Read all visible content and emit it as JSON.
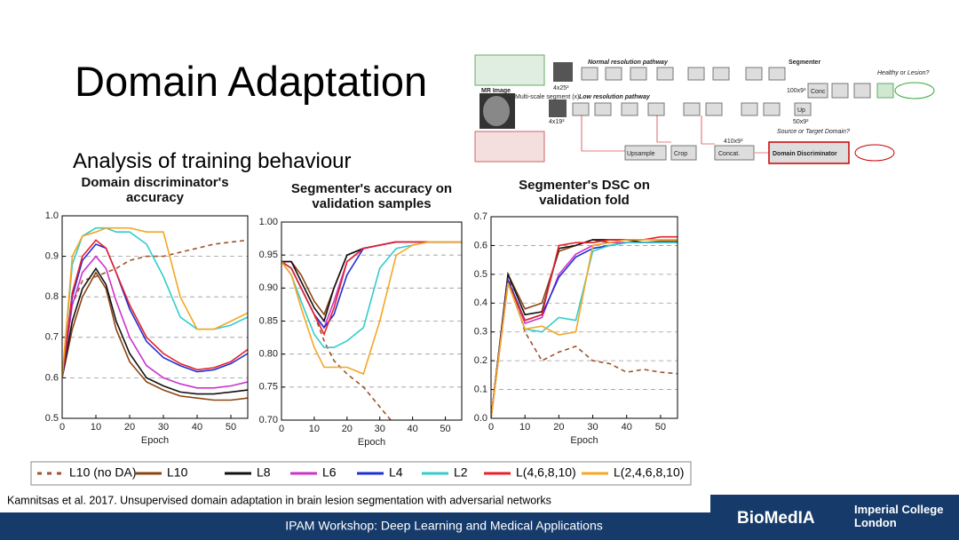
{
  "title": "Domain Adaptation",
  "subtitle": "Analysis of training behaviour",
  "citation": "Kamnitsas et al. 2017. Unsupervised domain adaptation in brain lesion segmentation with adversarial networks",
  "footer": {
    "text": "IPAM Workshop: Deep Learning and Medical Applications",
    "logo": "BioMedIA",
    "institution": "Imperial College London"
  },
  "diagram": {
    "labels": [
      "MR Image",
      "Multi-scale segment (x)",
      "Normal resolution pathway",
      "Low resolution pathway",
      "Segmenter",
      "Healthy or Lesion?",
      "Source or Target Domain?",
      "Upsample",
      "Crop",
      "Concat.",
      "Domain Discriminator",
      "410x9³",
      "Conc",
      "Up",
      "100x9³",
      "50x9³",
      "4x25³",
      "4x19³"
    ]
  },
  "chart_data": [
    {
      "type": "line",
      "title": "Domain discriminator's accuracy",
      "xlabel": "Epoch",
      "x": [
        0,
        3,
        6,
        10,
        13,
        16,
        20,
        25,
        30,
        35,
        40,
        45,
        50,
        55
      ],
      "xlim": [
        0,
        55
      ],
      "xticks": [
        0,
        10,
        20,
        30,
        40,
        50
      ],
      "ylim": [
        0.5,
        1.0
      ],
      "yticks": [
        0.5,
        0.6,
        0.7,
        0.8,
        0.9,
        {
          "value": 1.0,
          "label": "1.0"
        }
      ],
      "grid": true,
      "series": [
        {
          "name": "L10 (no DA)",
          "color": "#a0522d",
          "dashed": true,
          "values": [
            0.6,
            0.78,
            0.84,
            0.85,
            0.86,
            0.87,
            0.89,
            0.9,
            0.9,
            0.91,
            0.92,
            0.93,
            0.935,
            0.94
          ]
        },
        {
          "name": "L10",
          "color": "#8b4513",
          "values": [
            0.6,
            0.72,
            0.8,
            0.86,
            0.82,
            0.72,
            0.64,
            0.59,
            0.57,
            0.555,
            0.55,
            0.545,
            0.545,
            0.55
          ]
        },
        {
          "name": "L8",
          "color": "#111111",
          "values": [
            0.6,
            0.74,
            0.82,
            0.87,
            0.83,
            0.74,
            0.66,
            0.6,
            0.58,
            0.565,
            0.56,
            0.56,
            0.565,
            0.57
          ]
        },
        {
          "name": "L6",
          "color": "#cc33cc",
          "values": [
            0.6,
            0.78,
            0.86,
            0.9,
            0.87,
            0.79,
            0.7,
            0.63,
            0.6,
            0.585,
            0.575,
            0.575,
            0.58,
            0.59
          ]
        },
        {
          "name": "L4",
          "color": "#1f2fd6",
          "values": [
            0.6,
            0.8,
            0.89,
            0.93,
            0.92,
            0.86,
            0.77,
            0.69,
            0.65,
            0.63,
            0.615,
            0.62,
            0.635,
            0.66
          ]
        },
        {
          "name": "L2",
          "color": "#33cccc",
          "values": [
            0.6,
            0.88,
            0.95,
            0.97,
            0.97,
            0.96,
            0.96,
            0.93,
            0.85,
            0.75,
            0.72,
            0.72,
            0.73,
            0.75
          ]
        },
        {
          "name": "L(4,6,8,10)",
          "color": "#e8202a",
          "values": [
            0.6,
            0.81,
            0.9,
            0.94,
            0.92,
            0.86,
            0.78,
            0.7,
            0.66,
            0.635,
            0.62,
            0.625,
            0.64,
            0.67
          ]
        },
        {
          "name": "L(2,4,6,8,10)",
          "color": "#f5a623",
          "values": [
            0.6,
            0.9,
            0.95,
            0.96,
            0.97,
            0.97,
            0.97,
            0.96,
            0.96,
            0.8,
            0.72,
            0.72,
            0.74,
            0.76
          ]
        }
      ]
    },
    {
      "type": "line",
      "title": "Segmenter's accuracy on validation samples",
      "xlabel": "Epoch",
      "x": [
        0,
        3,
        6,
        10,
        13,
        16,
        20,
        25,
        30,
        35,
        40,
        45,
        50,
        55
      ],
      "xlim": [
        0,
        55
      ],
      "xticks": [
        0,
        10,
        20,
        30,
        40,
        50
      ],
      "ylim": [
        0.7,
        1.0
      ],
      "yticks": [
        {
          "value": 0.7,
          "label": "0.70"
        },
        0.75,
        {
          "value": 0.8,
          "label": "0.80"
        },
        0.85,
        {
          "value": 0.9,
          "label": "0.90"
        },
        0.95,
        {
          "value": 1.0,
          "label": "1.00"
        }
      ],
      "grid": true,
      "series": [
        {
          "values": [
            0.94,
            0.93,
            0.9,
            0.86,
            0.82,
            0.79,
            0.77,
            0.75,
            0.72,
            0.69,
            null,
            null,
            null,
            null
          ]
        },
        {
          "values": [
            0.94,
            0.94,
            0.92,
            0.88,
            0.86,
            0.9,
            0.95,
            0.96,
            0.965,
            0.97,
            0.97,
            0.97,
            0.97,
            0.97
          ]
        },
        {
          "values": [
            0.94,
            0.94,
            0.91,
            0.87,
            0.85,
            0.9,
            0.95,
            0.96,
            0.965,
            0.97,
            0.97,
            0.97,
            0.97,
            0.97
          ]
        },
        {
          "values": [
            0.94,
            0.93,
            0.9,
            0.86,
            0.84,
            0.88,
            0.94,
            0.96,
            0.965,
            0.97,
            0.97,
            0.97,
            0.97,
            0.97
          ]
        },
        {
          "values": [
            0.94,
            0.93,
            0.9,
            0.86,
            0.84,
            0.86,
            0.92,
            0.96,
            0.965,
            0.97,
            0.97,
            0.97,
            0.97,
            0.97
          ]
        },
        {
          "values": [
            0.94,
            0.92,
            0.88,
            0.83,
            0.81,
            0.81,
            0.82,
            0.84,
            0.93,
            0.96,
            0.965,
            0.97,
            0.97,
            0.97
          ]
        },
        {
          "values": [
            0.94,
            0.93,
            0.9,
            0.86,
            0.83,
            0.87,
            0.94,
            0.96,
            0.965,
            0.97,
            0.97,
            0.97,
            0.97,
            0.97
          ]
        },
        {
          "values": [
            0.94,
            0.92,
            0.87,
            0.81,
            0.78,
            0.78,
            0.78,
            0.77,
            0.85,
            0.95,
            0.965,
            0.97,
            0.97,
            0.97
          ]
        }
      ]
    },
    {
      "type": "line",
      "title": "Segmenter's DSC on validation fold",
      "xlabel": "Epoch",
      "x": [
        0,
        5,
        10,
        15,
        20,
        25,
        30,
        35,
        40,
        45,
        50,
        55
      ],
      "xlim": [
        0,
        55
      ],
      "xticks": [
        0,
        10,
        20,
        30,
        40,
        50
      ],
      "ylim": [
        0,
        0.7
      ],
      "yticks": [
        {
          "value": 0,
          "label": "0.0"
        },
        0.1,
        0.2,
        0.3,
        0.4,
        0.5,
        0.6,
        0.7
      ],
      "grid": true,
      "series": [
        {
          "values": [
            0,
            0.5,
            0.3,
            0.2,
            0.23,
            0.25,
            0.2,
            0.19,
            0.16,
            0.17,
            0.16,
            0.155
          ]
        },
        {
          "values": [
            0,
            0.5,
            0.38,
            0.4,
            0.58,
            0.6,
            0.62,
            0.61,
            0.61,
            0.61,
            0.615,
            0.615
          ]
        },
        {
          "values": [
            0,
            0.5,
            0.36,
            0.37,
            0.59,
            0.6,
            0.62,
            0.62,
            0.62,
            0.61,
            0.61,
            0.61
          ]
        },
        {
          "values": [
            0,
            0.48,
            0.33,
            0.35,
            0.5,
            0.57,
            0.6,
            0.61,
            0.61,
            0.61,
            0.61,
            0.61
          ]
        },
        {
          "values": [
            0,
            0.48,
            0.34,
            0.36,
            0.49,
            0.56,
            0.59,
            0.6,
            0.61,
            0.61,
            0.61,
            0.61
          ]
        },
        {
          "values": [
            0,
            0.47,
            0.31,
            0.3,
            0.35,
            0.34,
            0.58,
            0.6,
            0.61,
            0.61,
            0.61,
            0.61
          ]
        },
        {
          "values": [
            0,
            0.47,
            0.34,
            0.36,
            0.6,
            0.61,
            0.61,
            0.62,
            0.62,
            0.62,
            0.63,
            0.63
          ]
        },
        {
          "values": [
            0,
            0.47,
            0.31,
            0.32,
            0.29,
            0.3,
            0.6,
            0.61,
            0.62,
            0.62,
            0.62,
            0.62
          ]
        }
      ]
    }
  ]
}
